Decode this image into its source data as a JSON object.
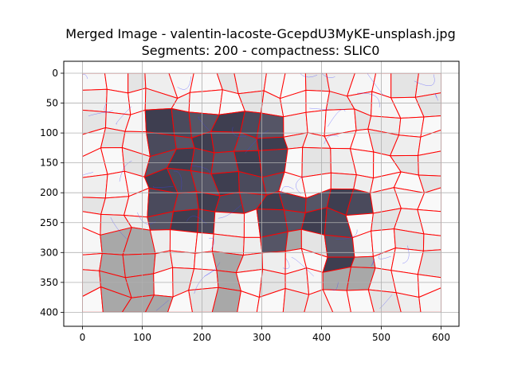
{
  "chart_data": {
    "type": "image-plot",
    "title": "Merged Image - valentin-lacoste-GcepdU3MyKE-unsplash.jpg",
    "subtitle": "Segments: 200 - compactness: SLIC0",
    "xlabel": "",
    "ylabel": "",
    "xlim": [
      0,
      600
    ],
    "ylim": [
      400,
      0
    ],
    "x_ticks": [
      0,
      100,
      200,
      300,
      400,
      500,
      600
    ],
    "y_ticks": [
      0,
      50,
      100,
      150,
      200,
      250,
      300,
      350,
      400
    ],
    "grid": true,
    "background_color": "#e8e8e8",
    "segment_boundary_color": "#ff0000",
    "contour_color": "#4040ff",
    "object_color": "#4a4a5c",
    "shadow_color": "#a8a8a8"
  }
}
